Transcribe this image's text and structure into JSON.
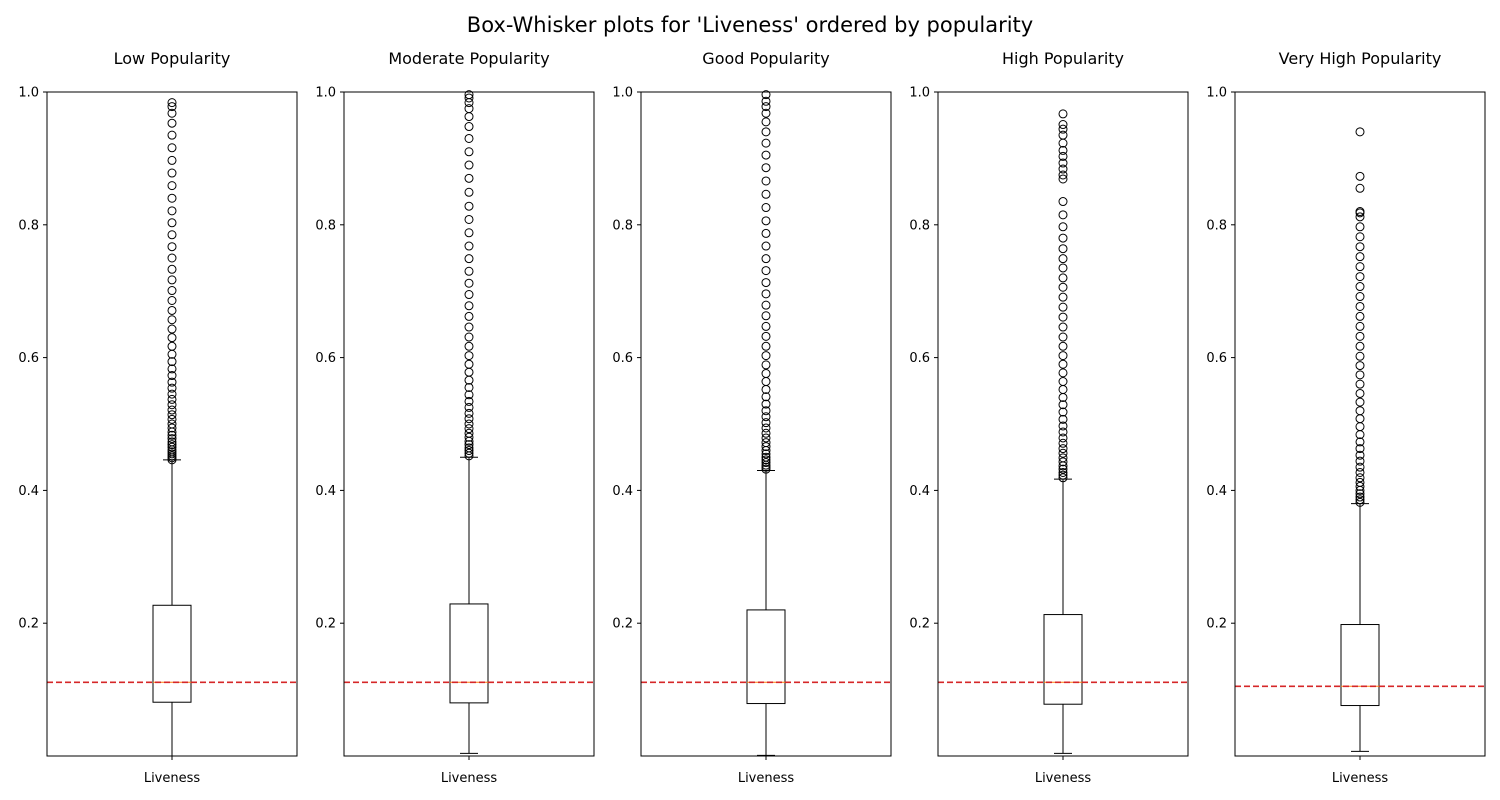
{
  "chart_data": {
    "type": "box",
    "title": "Box-Whisker plots for 'Liveness' ordered by popularity",
    "ylim": [
      0.0,
      1.0
    ],
    "y_ticks": [
      0.2,
      0.4,
      0.6,
      0.8,
      1.0
    ],
    "y_tick_labels": [
      "0.2",
      "0.4",
      "0.6",
      "0.8",
      "1.0"
    ],
    "grid": false,
    "legend": "none",
    "colors": {
      "box": "#000000",
      "median": "#ff7f0e",
      "reference_line": "#d62728",
      "background": "#ffffff"
    },
    "panels": [
      {
        "title": "Low Popularity",
        "category": "Liveness",
        "box": {
          "whislo": 0.0,
          "q1": 0.081,
          "median": 0.111,
          "q3": 0.227,
          "whishi": 0.446
        },
        "reference_line": 0.111,
        "outliers": [
          0.446,
          0.449,
          0.452,
          0.455,
          0.458,
          0.461,
          0.465,
          0.469,
          0.473,
          0.478,
          0.483,
          0.488,
          0.494,
          0.5,
          0.507,
          0.514,
          0.521,
          0.529,
          0.537,
          0.545,
          0.554,
          0.563,
          0.573,
          0.583,
          0.594,
          0.605,
          0.617,
          0.63,
          0.643,
          0.657,
          0.671,
          0.686,
          0.701,
          0.717,
          0.733,
          0.75,
          0.767,
          0.785,
          0.803,
          0.821,
          0.84,
          0.859,
          0.878,
          0.897,
          0.916,
          0.935,
          0.953,
          0.968,
          0.978,
          0.984
        ]
      },
      {
        "title": "Moderate Popularity",
        "category": "Liveness",
        "box": {
          "whislo": 0.004,
          "q1": 0.08,
          "median": 0.111,
          "q3": 0.229,
          "whishi": 0.45
        },
        "reference_line": 0.111,
        "outliers": [
          0.452,
          0.456,
          0.46,
          0.464,
          0.469,
          0.474,
          0.48,
          0.486,
          0.493,
          0.5,
          0.508,
          0.516,
          0.525,
          0.534,
          0.544,
          0.555,
          0.566,
          0.578,
          0.59,
          0.603,
          0.617,
          0.631,
          0.646,
          0.662,
          0.678,
          0.695,
          0.712,
          0.73,
          0.749,
          0.768,
          0.788,
          0.808,
          0.828,
          0.849,
          0.87,
          0.89,
          0.91,
          0.93,
          0.948,
          0.963,
          0.975,
          0.984,
          0.991,
          0.996
        ]
      },
      {
        "title": "Good Popularity",
        "category": "Liveness",
        "box": {
          "whislo": 0.001,
          "q1": 0.079,
          "median": 0.111,
          "q3": 0.22,
          "whishi": 0.43
        },
        "reference_line": 0.111,
        "outliers": [
          0.432,
          0.435,
          0.438,
          0.442,
          0.446,
          0.45,
          0.455,
          0.46,
          0.466,
          0.472,
          0.479,
          0.486,
          0.494,
          0.502,
          0.511,
          0.52,
          0.53,
          0.541,
          0.552,
          0.564,
          0.576,
          0.589,
          0.603,
          0.617,
          0.632,
          0.647,
          0.663,
          0.679,
          0.696,
          0.713,
          0.731,
          0.749,
          0.768,
          0.787,
          0.806,
          0.826,
          0.846,
          0.866,
          0.886,
          0.905,
          0.923,
          0.94,
          0.955,
          0.968,
          0.978,
          0.986,
          0.996
        ]
      },
      {
        "title": "High Popularity",
        "category": "Liveness",
        "box": {
          "whislo": 0.004,
          "q1": 0.078,
          "median": 0.111,
          "q3": 0.213,
          "whishi": 0.417
        },
        "reference_line": 0.111,
        "outliers": [
          0.419,
          0.423,
          0.427,
          0.432,
          0.437,
          0.443,
          0.449,
          0.456,
          0.463,
          0.471,
          0.479,
          0.488,
          0.497,
          0.507,
          0.518,
          0.529,
          0.54,
          0.552,
          0.564,
          0.577,
          0.59,
          0.603,
          0.617,
          0.631,
          0.646,
          0.661,
          0.676,
          0.691,
          0.706,
          0.72,
          0.735,
          0.749,
          0.764,
          0.78,
          0.797,
          0.815,
          0.835,
          0.869,
          0.875,
          0.884,
          0.893,
          0.903,
          0.912,
          0.923,
          0.935,
          0.944,
          0.951,
          0.967
        ]
      },
      {
        "title": "Very High Popularity",
        "category": "Liveness",
        "box": {
          "whislo": 0.007,
          "q1": 0.076,
          "median": 0.105,
          "q3": 0.198,
          "whishi": 0.38
        },
        "reference_line": 0.105,
        "outliers": [
          0.382,
          0.386,
          0.39,
          0.395,
          0.4,
          0.406,
          0.412,
          0.419,
          0.427,
          0.435,
          0.444,
          0.453,
          0.463,
          0.473,
          0.484,
          0.496,
          0.508,
          0.52,
          0.533,
          0.546,
          0.56,
          0.574,
          0.588,
          0.602,
          0.617,
          0.632,
          0.647,
          0.662,
          0.677,
          0.692,
          0.707,
          0.722,
          0.737,
          0.752,
          0.767,
          0.782,
          0.797,
          0.812,
          0.818,
          0.82,
          0.855,
          0.873,
          0.94
        ]
      }
    ]
  }
}
